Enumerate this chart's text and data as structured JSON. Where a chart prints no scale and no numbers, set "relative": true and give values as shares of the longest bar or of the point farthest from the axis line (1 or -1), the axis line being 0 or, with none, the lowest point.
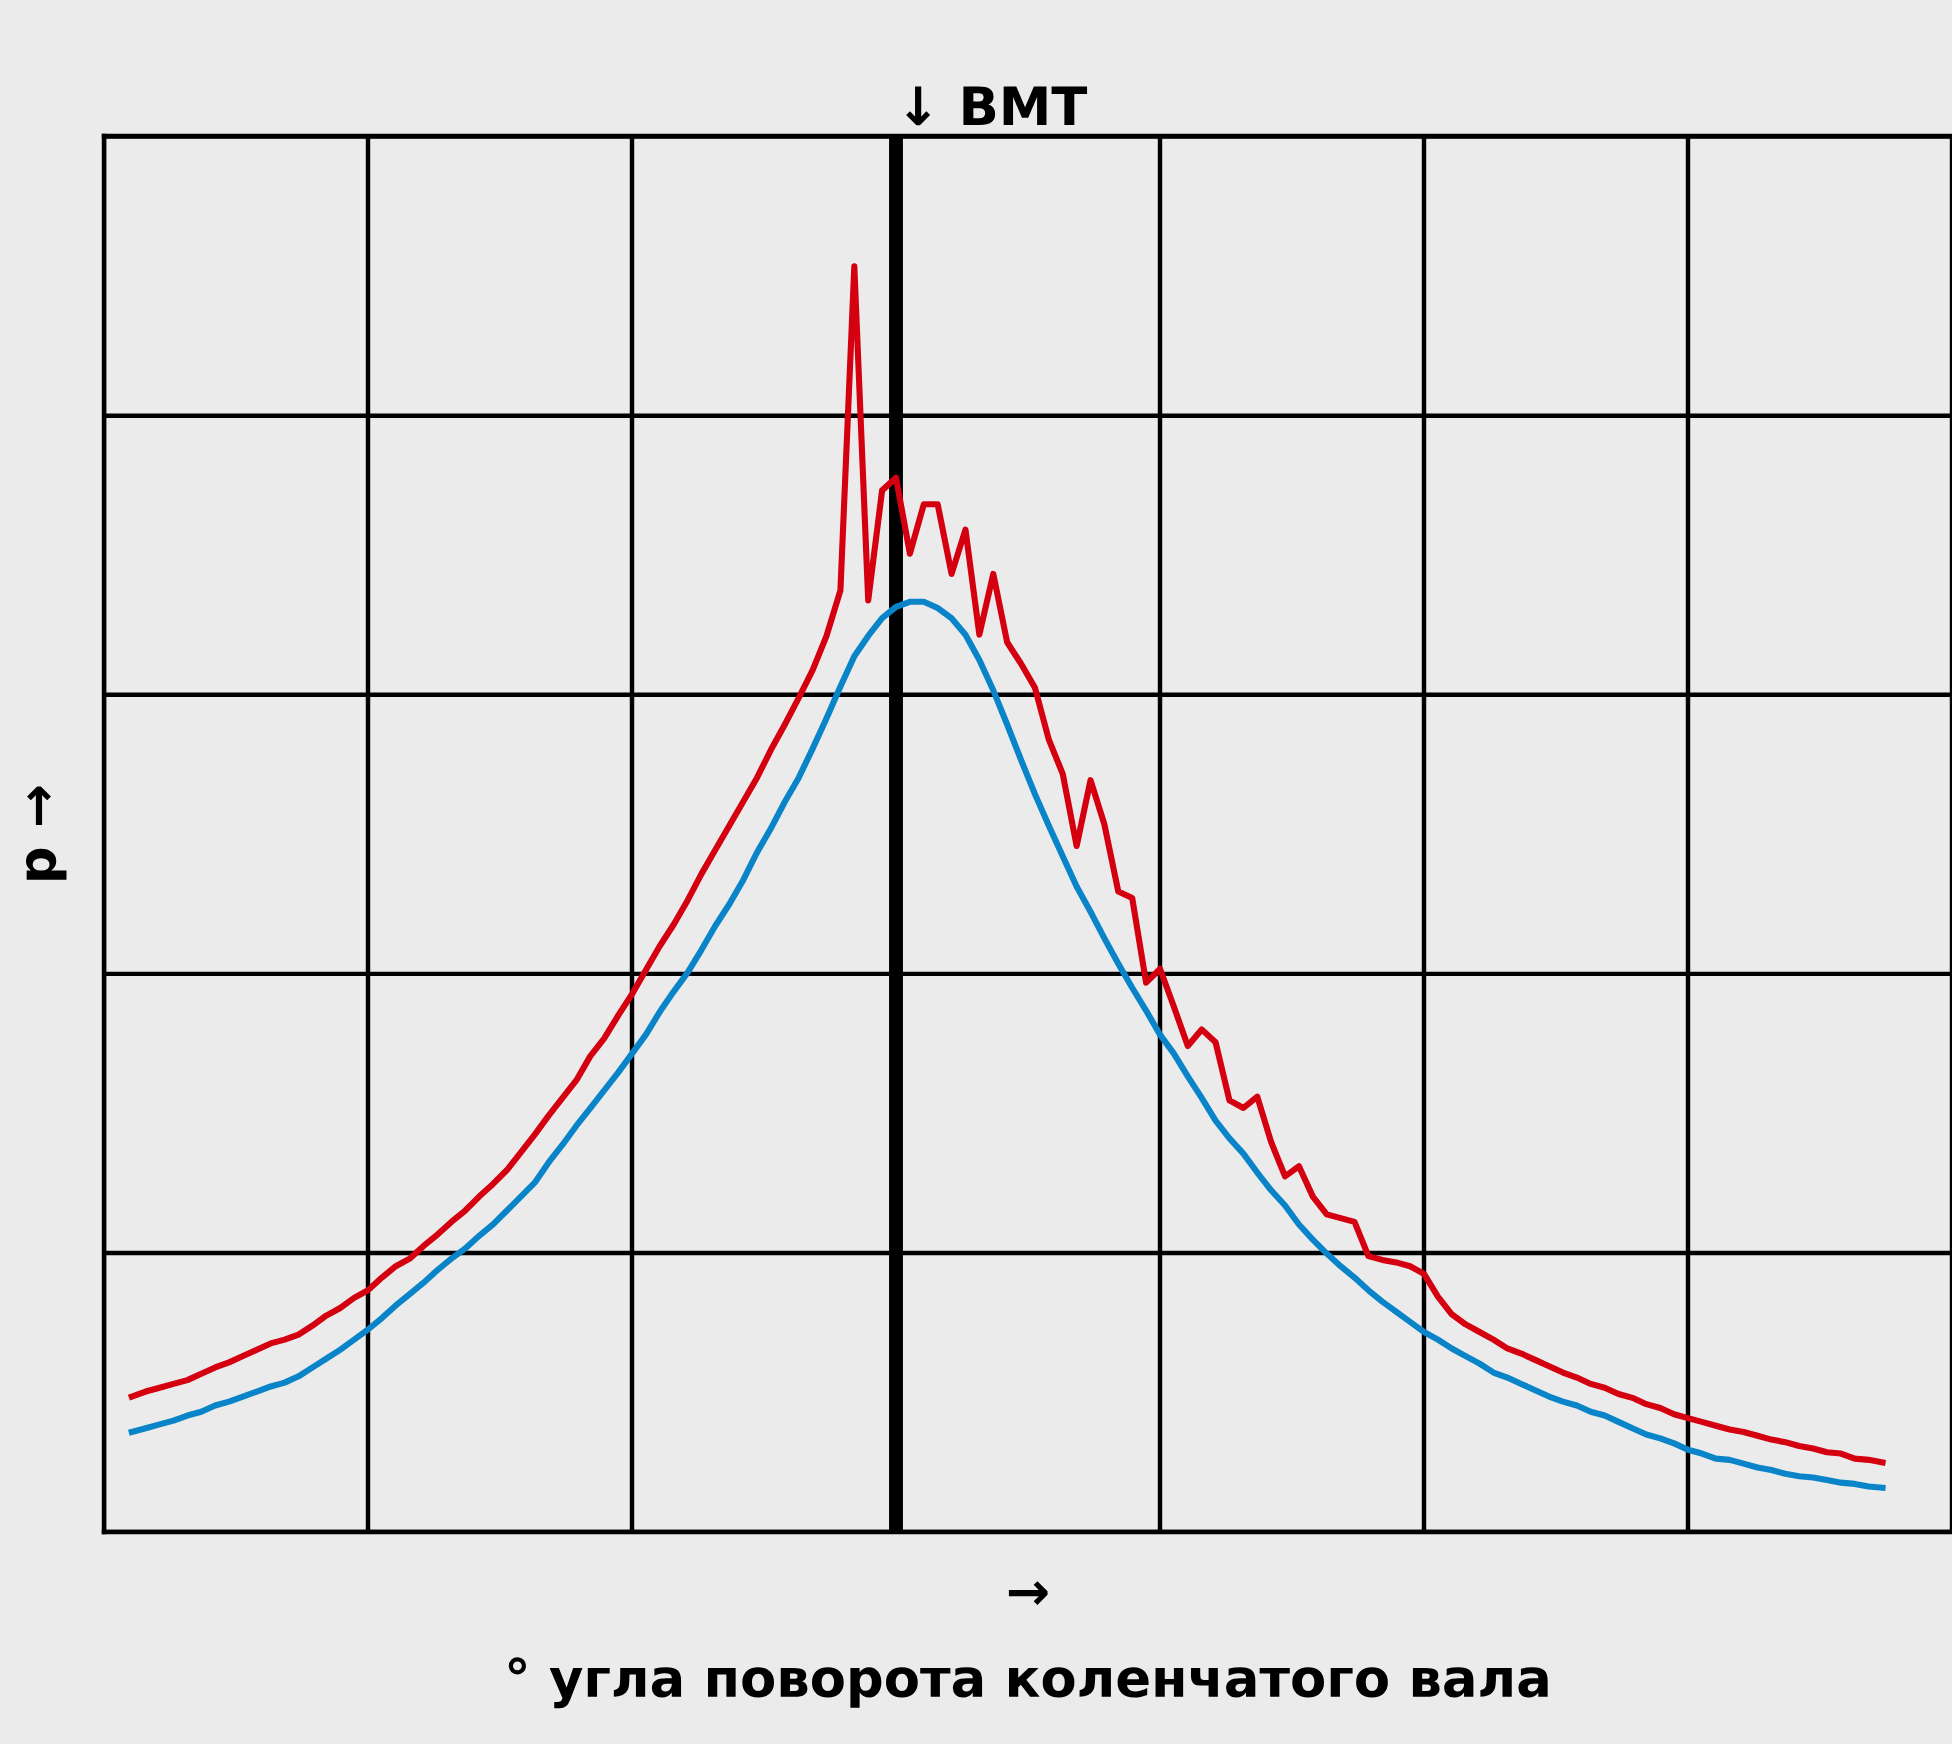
{
  "chart_data": {
    "type": "line",
    "relative": true,
    "grid": true,
    "marker": "none",
    "line_style": "solid",
    "xlabel": "→\n° угла поворота коленчатого вала",
    "ylabel": "p →",
    "categories": [
      null,
      null,
      null,
      null,
      null,
      null,
      null,
      null,
      null,
      null,
      null,
      null,
      null,
      null,
      null,
      null,
      null,
      null,
      null,
      null,
      null,
      null,
      null,
      null,
      null,
      null,
      null,
      null,
      null,
      null,
      null,
      null,
      null,
      null,
      null,
      null,
      null,
      null,
      null,
      null,
      null,
      null,
      null,
      null,
      null,
      null,
      null,
      null,
      null,
      null,
      null,
      null,
      null,
      null,
      null,
      null,
      null,
      null,
      null,
      null,
      null,
      null,
      null,
      null,
      null,
      null,
      null,
      null,
      null,
      null,
      null,
      null,
      null,
      null,
      null,
      null,
      null,
      null,
      null,
      null,
      null,
      null,
      null,
      null,
      null,
      null,
      null,
      null,
      null,
      null,
      null,
      null,
      null,
      null,
      null,
      null,
      null,
      null,
      null,
      null,
      null,
      null,
      null,
      null,
      null,
      null,
      null,
      null,
      null,
      null,
      null,
      null,
      null,
      null,
      null,
      null,
      null,
      null,
      null,
      null,
      null,
      null,
      null,
      null,
      null,
      null,
      null
    ],
    "series": [
      {
        "color": "#0a84c8",
        "values": [
          0.079,
          0.082,
          0.085,
          0.088,
          0.092,
          0.095,
          0.1,
          0.103,
          0.107,
          0.111,
          0.115,
          0.118,
          0.123,
          0.13,
          0.137,
          0.144,
          0.152,
          0.16,
          0.169,
          0.179,
          0.188,
          0.197,
          0.207,
          0.216,
          0.224,
          0.234,
          0.243,
          0.254,
          0.265,
          0.276,
          0.292,
          0.306,
          0.321,
          0.335,
          0.349,
          0.363,
          0.378,
          0.393,
          0.411,
          0.427,
          0.442,
          0.46,
          0.479,
          0.496,
          0.515,
          0.537,
          0.556,
          0.577,
          0.596,
          0.619,
          0.643,
          0.668,
          0.692,
          0.708,
          0.722,
          0.731,
          0.735,
          0.735,
          0.73,
          0.722,
          0.709,
          0.689,
          0.665,
          0.638,
          0.61,
          0.583,
          0.558,
          0.534,
          0.51,
          0.49,
          0.469,
          0.449,
          0.43,
          0.412,
          0.393,
          0.378,
          0.36,
          0.343,
          0.325,
          0.311,
          0.299,
          0.284,
          0.27,
          0.258,
          0.243,
          0.231,
          0.22,
          0.21,
          0.201,
          0.191,
          0.182,
          0.174,
          0.166,
          0.158,
          0.152,
          0.145,
          0.139,
          0.133,
          0.126,
          0.122,
          0.117,
          0.112,
          0.107,
          0.103,
          0.1,
          0.095,
          0.092,
          0.087,
          0.082,
          0.077,
          0.074,
          0.07,
          0.065,
          0.062,
          0.058,
          0.057,
          0.054,
          0.051,
          0.049,
          0.046,
          0.044,
          0.043,
          0.041,
          0.039,
          0.038,
          0.036,
          0.035
        ]
      },
      {
        "color": "#d40010",
        "values": [
          0.107,
          0.111,
          0.114,
          0.117,
          0.12,
          0.125,
          0.13,
          0.134,
          0.139,
          0.144,
          0.149,
          0.152,
          0.156,
          0.163,
          0.171,
          0.177,
          0.185,
          0.191,
          0.201,
          0.21,
          0.216,
          0.226,
          0.235,
          0.245,
          0.254,
          0.265,
          0.275,
          0.286,
          0.3,
          0.314,
          0.329,
          0.343,
          0.357,
          0.376,
          0.39,
          0.408,
          0.425,
          0.444,
          0.463,
          0.48,
          0.499,
          0.52,
          0.539,
          0.558,
          0.577,
          0.596,
          0.618,
          0.638,
          0.659,
          0.681,
          0.708,
          0.744,
          1.0,
          0.736,
          0.823,
          0.833,
          0.773,
          0.812,
          0.812,
          0.757,
          0.792,
          0.709,
          0.757,
          0.703,
          0.686,
          0.667,
          0.626,
          0.599,
          0.542,
          0.594,
          0.559,
          0.506,
          0.501,
          0.434,
          0.445,
          0.415,
          0.384,
          0.397,
          0.387,
          0.341,
          0.335,
          0.344,
          0.308,
          0.281,
          0.289,
          0.265,
          0.251,
          0.248,
          0.245,
          0.218,
          0.215,
          0.213,
          0.21,
          0.204,
          0.186,
          0.172,
          0.164,
          0.158,
          0.152,
          0.145,
          0.141,
          0.136,
          0.131,
          0.126,
          0.122,
          0.117,
          0.114,
          0.109,
          0.106,
          0.101,
          0.098,
          0.093,
          0.09,
          0.087,
          0.084,
          0.081,
          0.079,
          0.076,
          0.073,
          0.071,
          0.068,
          0.066,
          0.063,
          0.062,
          0.058,
          0.057,
          0.055
        ]
      }
    ],
    "annotations": [
      "↓ BMT"
    ]
  }
}
